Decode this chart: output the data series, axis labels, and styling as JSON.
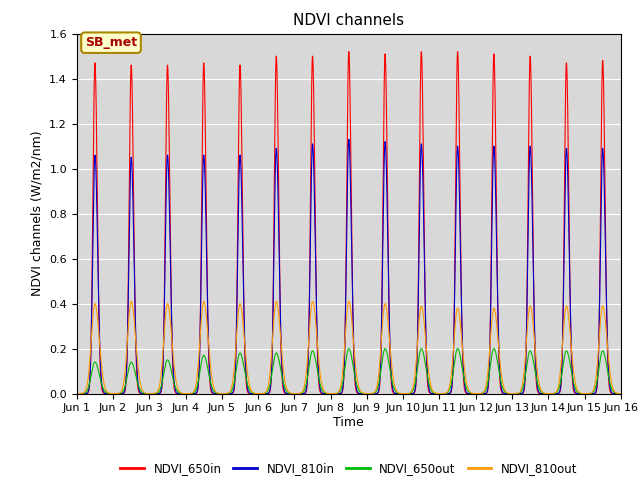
{
  "title": "NDVI channels",
  "xlabel": "Time",
  "ylabel": "NDVI channels (W/m2/nm)",
  "ylim": [
    0.0,
    1.6
  ],
  "xlim": [
    0,
    15
  ],
  "x_tick_labels": [
    "Jun 1",
    "Jun 2",
    "Jun 3",
    "Jun 4",
    "Jun 5",
    "Jun 6",
    "Jun 7",
    "Jun 8",
    "Jun 9",
    "Jun 10",
    "Jun 11",
    "Jun 12",
    "Jun 13",
    "Jun 14",
    "Jun 15",
    "Jun 16"
  ],
  "x_tick_positions": [
    0,
    1,
    2,
    3,
    4,
    5,
    6,
    7,
    8,
    9,
    10,
    11,
    12,
    13,
    14,
    15
  ],
  "num_days": 15,
  "peaks_650in": [
    1.47,
    1.46,
    1.46,
    1.47,
    1.46,
    1.5,
    1.5,
    1.52,
    1.51,
    1.52,
    1.52,
    1.51,
    1.5,
    1.47,
    1.48
  ],
  "peaks_810in": [
    1.06,
    1.05,
    1.06,
    1.06,
    1.06,
    1.09,
    1.11,
    1.13,
    1.12,
    1.11,
    1.1,
    1.1,
    1.1,
    1.09,
    1.09
  ],
  "peaks_810out": [
    0.4,
    0.41,
    0.4,
    0.41,
    0.4,
    0.41,
    0.41,
    0.41,
    0.4,
    0.39,
    0.38,
    0.38,
    0.39,
    0.39,
    0.39
  ],
  "peaks_650out": [
    0.14,
    0.14,
    0.15,
    0.17,
    0.18,
    0.18,
    0.19,
    0.2,
    0.2,
    0.2,
    0.2,
    0.2,
    0.19,
    0.19,
    0.19
  ],
  "color_650in": "#ff0000",
  "color_810in": "#0000cc",
  "color_650out": "#00bb00",
  "color_810out": "#ff9900",
  "background_color": "#d8d8d8",
  "annotation_text": "SB_met",
  "annotation_facecolor": "#ffffcc",
  "annotation_edgecolor": "#aa8800",
  "annotation_textcolor": "#aa0000",
  "legend_labels": [
    "NDVI_650in",
    "NDVI_810in",
    "NDVI_650out",
    "NDVI_810out"
  ],
  "title_fontsize": 11,
  "axis_label_fontsize": 9,
  "tick_fontsize": 8
}
